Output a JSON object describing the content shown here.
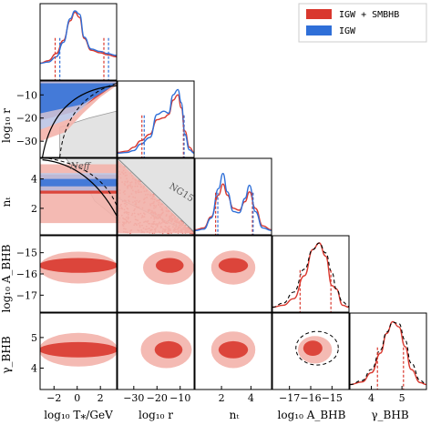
{
  "chart_data": {
    "type": "scatter",
    "subtype": "corner-plot",
    "legend": {
      "placement": "top-right",
      "entries": [
        {
          "label": "IGW + SMBHB",
          "color": "#d9382e"
        },
        {
          "label": "IGW",
          "color": "#2f6fd8"
        }
      ]
    },
    "parameters": [
      {
        "key": "log10T",
        "label": "log₁₀ T⁎/GeV",
        "range": [
          -3.2,
          3.4
        ],
        "ticks": [
          -2,
          0,
          2
        ]
      },
      {
        "key": "log10r",
        "label": "log₁₀ r",
        "range": [
          -37,
          -4
        ],
        "ticks": [
          -30,
          -20,
          -10
        ]
      },
      {
        "key": "nt",
        "label": "nₜ",
        "range": [
          0.2,
          5.4
        ],
        "ticks": [
          2,
          4
        ]
      },
      {
        "key": "log10A",
        "label": "log₁₀ A_BHB",
        "range": [
          -17.8,
          -14.2
        ],
        "ticks": [
          -17,
          -16,
          -15
        ]
      },
      {
        "key": "gamma",
        "label": "γ_BHB",
        "range": [
          3.3,
          5.8
        ],
        "ticks": [
          4,
          5
        ]
      }
    ],
    "marginals": {
      "IGW+SMBHB": {
        "log10T": {
          "x": [
            -3.2,
            -2.5,
            -1.8,
            -1.2,
            -0.6,
            -0.2,
            0.2,
            0.6,
            1.2,
            2.0,
            2.6,
            3.4
          ],
          "y": [
            0.2,
            0.24,
            0.35,
            0.55,
            0.85,
            0.98,
            0.9,
            0.58,
            0.4,
            0.36,
            0.33,
            0.3
          ]
        },
        "log10r": {
          "x": [
            -37,
            -33,
            -30,
            -27,
            -23,
            -20,
            -17,
            -15,
            -13,
            -11,
            -9.5,
            -8,
            -6,
            -4
          ],
          "y": [
            0.02,
            0.04,
            0.1,
            0.2,
            0.3,
            0.52,
            0.55,
            0.6,
            0.82,
            0.9,
            0.7,
            0.35,
            0.1,
            0.02
          ]
        },
        "nt": {
          "x": [
            0.2,
            0.8,
            1.3,
            1.8,
            2.1,
            2.4,
            2.8,
            3.2,
            3.6,
            3.9,
            4.3,
            4.8,
            5.4
          ],
          "y": [
            0.02,
            0.05,
            0.22,
            0.55,
            0.72,
            0.55,
            0.35,
            0.32,
            0.45,
            0.6,
            0.35,
            0.08,
            0.02
          ]
        },
        "log10A": {
          "x": [
            -17.8,
            -17.3,
            -16.8,
            -16.3,
            -15.9,
            -15.6,
            -15.3,
            -15.0,
            -14.8,
            -14.5,
            -14.2
          ],
          "y": [
            0.02,
            0.05,
            0.15,
            0.5,
            0.9,
            1.0,
            0.8,
            0.35,
            0.3,
            0.05,
            0.02
          ]
        },
        "gamma": {
          "x": [
            3.3,
            3.7,
            4.0,
            4.3,
            4.5,
            4.7,
            4.9,
            5.1,
            5.3,
            5.6,
            5.8
          ],
          "y": [
            0.02,
            0.06,
            0.2,
            0.5,
            0.8,
            0.98,
            0.9,
            0.6,
            0.25,
            0.05,
            0.02
          ]
        }
      },
      "IGW": {
        "log10T": {
          "x": [
            -3.2,
            -2.5,
            -1.8,
            -1.2,
            -0.6,
            -0.2,
            0.2,
            0.6,
            1.2,
            2.0,
            2.6,
            3.4
          ],
          "y": [
            0.2,
            0.22,
            0.3,
            0.52,
            0.88,
            1.0,
            0.95,
            0.6,
            0.42,
            0.38,
            0.35,
            0.32
          ]
        },
        "log10r": {
          "x": [
            -37,
            -33,
            -30,
            -27,
            -23,
            -20,
            -17,
            -15,
            -13,
            -11,
            -9.5,
            -8,
            -6,
            -4
          ],
          "y": [
            0.01,
            0.02,
            0.05,
            0.15,
            0.25,
            0.6,
            0.65,
            0.62,
            0.9,
            0.98,
            0.78,
            0.3,
            0.06,
            0.01
          ]
        },
        "nt": {
          "x": [
            0.2,
            0.8,
            1.3,
            1.8,
            2.1,
            2.4,
            2.8,
            3.2,
            3.6,
            3.9,
            4.3,
            4.8,
            5.4
          ],
          "y": [
            0.01,
            0.03,
            0.2,
            0.65,
            0.88,
            0.6,
            0.3,
            0.28,
            0.5,
            0.7,
            0.3,
            0.05,
            0.01
          ]
        }
      },
      "prior_dashed": {
        "log10A": {
          "x": [
            -17.8,
            -17.3,
            -16.8,
            -16.3,
            -15.9,
            -15.6,
            -15.3,
            -15.0,
            -14.8,
            -14.5,
            -14.2
          ],
          "y": [
            0.02,
            0.08,
            0.25,
            0.6,
            0.9,
            1.0,
            0.85,
            0.55,
            0.3,
            0.1,
            0.03
          ]
        },
        "gamma": {
          "x": [
            3.3,
            3.7,
            4.0,
            4.3,
            4.5,
            4.7,
            4.9,
            5.1,
            5.3,
            5.6,
            5.8
          ],
          "y": [
            0.02,
            0.08,
            0.25,
            0.55,
            0.82,
            0.97,
            0.95,
            0.7,
            0.35,
            0.08,
            0.02
          ]
        }
      }
    },
    "quantiles": {
      "IGW+SMBHB": {
        "log10T": [
          -1.9,
          2.3
        ],
        "log10r": [
          -26.5,
          -8.6
        ],
        "nt": [
          1.6,
          4.1
        ],
        "log10A": [
          -16.5,
          -15.05
        ],
        "gamma": [
          4.2,
          5.05
        ]
      },
      "IGW": {
        "log10T": [
          -1.5,
          2.7
        ],
        "log10r": [
          -25.5,
          -8.3
        ],
        "nt": [
          1.75,
          4.15
        ]
      }
    },
    "annotations": [
      {
        "text": "Neff",
        "panel": "nt-vs-log10T"
      },
      {
        "text": "NG15",
        "panel": "nt-vs-log10r"
      }
    ]
  },
  "colors": {
    "red": "#d9382e",
    "red_light": "#f3b2ab",
    "red_mid": "#e8766d",
    "blue": "#2f6fd8",
    "blue_light": "#b9cdf0",
    "blue_mid": "#6f9be6",
    "grey": "#e3e3e3"
  }
}
